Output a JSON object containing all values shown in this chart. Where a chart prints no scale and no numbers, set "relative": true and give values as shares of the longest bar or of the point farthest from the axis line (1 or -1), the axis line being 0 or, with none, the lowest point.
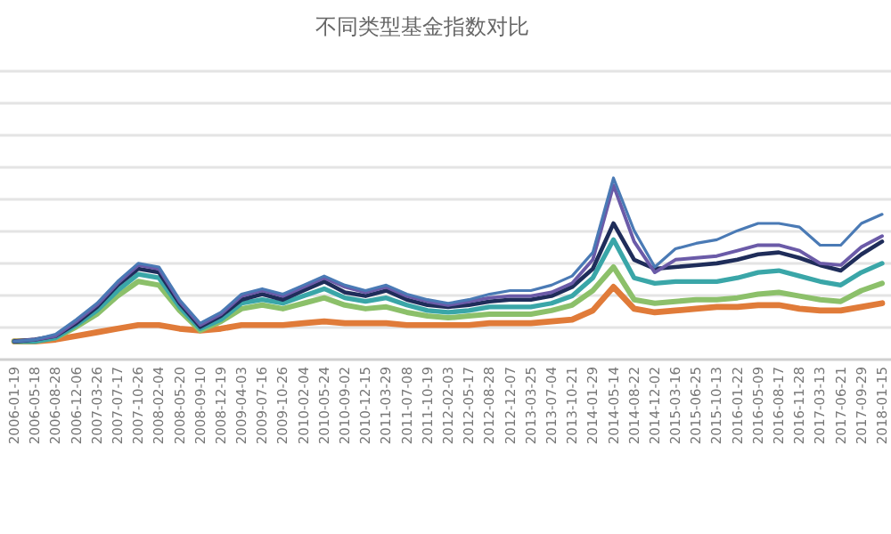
{
  "chart_data": {
    "type": "line",
    "title": "不同类型基金指数对比",
    "relative": true,
    "grid": "y",
    "categories": [
      "2006-01-19",
      "2006-05-18",
      "2006-08-28",
      "2006-12-06",
      "2007-03-26",
      "2007-07-17",
      "2007-10-26",
      "2008-02-04",
      "2008-05-20",
      "2008-09-10",
      "2008-12-19",
      "2009-04-03",
      "2009-07-16",
      "2009-10-26",
      "2010-02-04",
      "2010-05-24",
      "2010-09-02",
      "2010-12-15",
      "2011-03-29",
      "2011-07-08",
      "2011-10-19",
      "2012-02-03",
      "2012-05-17",
      "2012-08-28",
      "2012-12-07",
      "2013-03-25",
      "2013-07-04",
      "2013-10-21",
      "2014-01-29",
      "2014-05-14",
      "2014-08-22",
      "2014-12-02",
      "2015-03-16",
      "2015-06-25",
      "2015-10-13",
      "2016-01-22",
      "2016-05-09",
      "2016-08-17",
      "2016-11-28",
      "2017-03-13",
      "2017-06-21",
      "2017-09-29",
      "2018-01-15"
    ],
    "series": [
      {
        "color": "#e07b39",
        "values": [
          0.1,
          0.1,
          0.11,
          0.13,
          0.15,
          0.17,
          0.19,
          0.19,
          0.17,
          0.16,
          0.17,
          0.19,
          0.19,
          0.19,
          0.2,
          0.21,
          0.2,
          0.2,
          0.2,
          0.19,
          0.19,
          0.19,
          0.19,
          0.2,
          0.2,
          0.2,
          0.21,
          0.22,
          0.27,
          0.4,
          0.28,
          0.26,
          0.27,
          0.28,
          0.29,
          0.29,
          0.3,
          0.3,
          0.28,
          0.27,
          0.27,
          0.29,
          0.31
        ]
      },
      {
        "color": "#8cc06a",
        "values": [
          0.1,
          0.1,
          0.12,
          0.18,
          0.25,
          0.35,
          0.43,
          0.41,
          0.27,
          0.16,
          0.21,
          0.28,
          0.3,
          0.28,
          0.31,
          0.34,
          0.3,
          0.28,
          0.29,
          0.26,
          0.24,
          0.23,
          0.24,
          0.25,
          0.25,
          0.25,
          0.27,
          0.3,
          0.38,
          0.51,
          0.33,
          0.31,
          0.32,
          0.33,
          0.33,
          0.34,
          0.36,
          0.37,
          0.35,
          0.33,
          0.32,
          0.38,
          0.42
        ]
      },
      {
        "color": "#3aa6a8",
        "values": [
          0.1,
          0.1,
          0.12,
          0.19,
          0.27,
          0.38,
          0.47,
          0.45,
          0.29,
          0.17,
          0.22,
          0.31,
          0.33,
          0.31,
          0.35,
          0.39,
          0.34,
          0.32,
          0.34,
          0.3,
          0.27,
          0.26,
          0.27,
          0.29,
          0.29,
          0.29,
          0.31,
          0.35,
          0.45,
          0.66,
          0.45,
          0.42,
          0.43,
          0.43,
          0.43,
          0.45,
          0.48,
          0.49,
          0.46,
          0.43,
          0.41,
          0.48,
          0.53
        ]
      },
      {
        "color": "#1f2d5a",
        "values": [
          0.1,
          0.11,
          0.13,
          0.2,
          0.29,
          0.41,
          0.5,
          0.48,
          0.31,
          0.18,
          0.24,
          0.33,
          0.36,
          0.33,
          0.38,
          0.43,
          0.37,
          0.35,
          0.38,
          0.33,
          0.3,
          0.29,
          0.3,
          0.32,
          0.33,
          0.33,
          0.35,
          0.4,
          0.5,
          0.75,
          0.55,
          0.5,
          0.51,
          0.52,
          0.53,
          0.55,
          0.58,
          0.59,
          0.56,
          0.52,
          0.49,
          0.58,
          0.65
        ]
      },
      {
        "color": "#6b5ba8",
        "values": [
          0.1,
          0.11,
          0.13,
          0.21,
          0.3,
          0.42,
          0.52,
          0.5,
          0.32,
          0.19,
          0.25,
          0.35,
          0.38,
          0.35,
          0.4,
          0.45,
          0.4,
          0.37,
          0.4,
          0.35,
          0.32,
          0.3,
          0.32,
          0.34,
          0.35,
          0.35,
          0.37,
          0.42,
          0.55,
          0.96,
          0.65,
          0.48,
          0.55,
          0.56,
          0.57,
          0.6,
          0.63,
          0.63,
          0.6,
          0.53,
          0.52,
          0.62,
          0.68
        ]
      },
      {
        "color": "#4a7ab5",
        "values": [
          0.1,
          0.11,
          0.14,
          0.22,
          0.31,
          0.43,
          0.53,
          0.51,
          0.33,
          0.2,
          0.26,
          0.36,
          0.39,
          0.36,
          0.41,
          0.46,
          0.41,
          0.38,
          0.41,
          0.36,
          0.33,
          0.31,
          0.33,
          0.36,
          0.38,
          0.38,
          0.41,
          0.46,
          0.59,
          1.0,
          0.71,
          0.51,
          0.61,
          0.64,
          0.66,
          0.71,
          0.75,
          0.75,
          0.73,
          0.63,
          0.63,
          0.75,
          0.8
        ]
      }
    ]
  }
}
